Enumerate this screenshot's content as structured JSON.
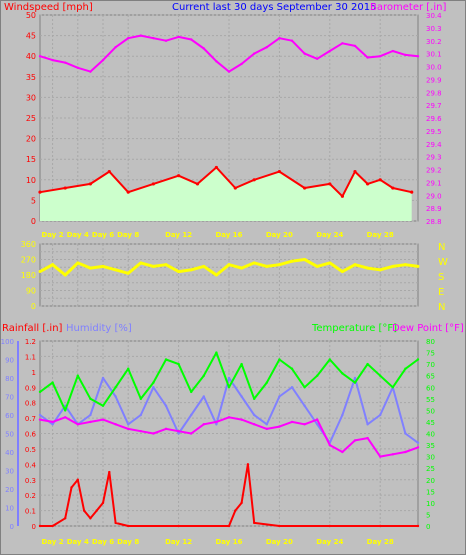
{
  "chart_data": [
    {
      "type": "line",
      "title": "Current last 30 days September 30 2015",
      "ylabel_left": "Windspeed [mph]",
      "ylabel_right": "Barometer [.in]",
      "x_tick_labels": [
        "Day 2",
        "Day 4",
        "Day 6",
        "Day 8",
        "Day 12",
        "Day 16",
        "Day 20",
        "Day 24",
        "Day 28"
      ],
      "x_tick_days": [
        2,
        4,
        6,
        8,
        12,
        16,
        20,
        24,
        28
      ],
      "x_range_days": [
        1,
        31
      ],
      "ylim_left": [
        0,
        50
      ],
      "ylim_right": [
        28.8,
        30.4
      ],
      "y_ticks_left": [
        0,
        5,
        10,
        15,
        20,
        25,
        30,
        35,
        40,
        45,
        50
      ],
      "y_ticks_right": [
        28.8,
        28.9,
        29.0,
        29.1,
        29.2,
        29.3,
        29.4,
        29.5,
        29.6,
        29.7,
        29.8,
        29.9,
        30.0,
        30.1,
        30.2,
        30.3,
        30.4
      ],
      "series": [
        {
          "name": "Windspeed [mph]",
          "color": "#ff0000",
          "x": [
            1,
            3,
            5,
            6.5,
            8,
            10,
            12,
            13.5,
            15,
            16.5,
            18,
            20,
            22,
            24,
            25,
            26,
            27,
            28,
            29,
            30.5
          ],
          "values": [
            7,
            8,
            9,
            12,
            7,
            9,
            11,
            9,
            13,
            8,
            10,
            12,
            8,
            9,
            6,
            12,
            9,
            10,
            8,
            7
          ]
        },
        {
          "name": "Barometer [.in]",
          "color": "#ff00ff",
          "x": [
            1,
            2,
            3,
            4,
            5,
            6,
            7,
            8,
            9,
            10,
            11,
            12,
            13,
            14,
            15,
            16,
            17,
            18,
            19,
            20,
            21,
            22,
            23,
            24,
            25,
            26,
            27,
            28,
            29,
            30,
            31
          ],
          "values": [
            30.08,
            30.05,
            30.03,
            29.99,
            29.96,
            30.05,
            30.15,
            30.22,
            30.24,
            30.22,
            30.2,
            30.23,
            30.21,
            30.14,
            30.04,
            29.96,
            30.02,
            30.1,
            30.15,
            30.22,
            30.2,
            30.1,
            30.06,
            30.12,
            30.18,
            30.16,
            30.07,
            30.08,
            30.12,
            30.09,
            30.08
          ]
        }
      ]
    },
    {
      "type": "line",
      "ylabel_right": [
        "N",
        "W",
        "S",
        "E",
        "N"
      ],
      "ylim": [
        0,
        360
      ],
      "y_ticks": [
        0,
        45,
        90,
        135,
        180,
        225,
        270,
        315,
        360
      ],
      "series": [
        {
          "name": "Wind direction",
          "color": "#ffff00",
          "x": [
            1,
            2,
            3,
            4,
            5,
            6,
            7,
            8,
            9,
            10,
            11,
            12,
            13,
            14,
            15,
            16,
            17,
            18,
            19,
            20,
            21,
            22,
            23,
            24,
            25,
            26,
            27,
            28,
            29,
            30,
            31
          ],
          "values": [
            200,
            240,
            180,
            250,
            220,
            230,
            210,
            190,
            250,
            230,
            240,
            200,
            210,
            230,
            180,
            240,
            220,
            250,
            230,
            240,
            260,
            270,
            230,
            250,
            200,
            240,
            220,
            210,
            230,
            240,
            230
          ]
        }
      ]
    },
    {
      "type": "line",
      "ylabel_left": "Rainfall [.in]",
      "ylabel_left2": "Humidity [%]",
      "ylabel_right": "Temperature [°F]",
      "ylabel_right2": "Dew Point [°F]",
      "ylim_rain": [
        0,
        1.2
      ],
      "ylim_humidity": [
        0,
        100
      ],
      "ylim_temp": [
        0,
        80
      ],
      "y_ticks_rain": [
        0,
        0.1,
        0.2,
        0.3,
        0.4,
        0.5,
        0.6,
        0.7,
        0.8,
        0.9,
        1.0,
        1.1,
        1.2
      ],
      "y_ticks_humidity": [
        0,
        10,
        20,
        30,
        40,
        50,
        60,
        70,
        80,
        90,
        100
      ],
      "y_ticks_temp": [
        0,
        5,
        10,
        15,
        20,
        25,
        30,
        35,
        40,
        45,
        50,
        55,
        60,
        65,
        70,
        75,
        80
      ],
      "series": [
        {
          "name": "Rainfall [.in]",
          "color": "#ff0000",
          "x": [
            1,
            2,
            3,
            3.5,
            4,
            4.5,
            5,
            5.5,
            6,
            6.5,
            7,
            8,
            12,
            16,
            16.5,
            17,
            17.5,
            18,
            20,
            24,
            28,
            31
          ],
          "values": [
            0,
            0,
            0.05,
            0.25,
            0.3,
            0.1,
            0.05,
            0.1,
            0.15,
            0.35,
            0.02,
            0,
            0,
            0,
            0.1,
            0.15,
            0.4,
            0.02,
            0,
            0,
            0,
            0
          ]
        },
        {
          "name": "Humidity [%]",
          "color": "#8080ff",
          "x": [
            1,
            2,
            3,
            4,
            5,
            6,
            7,
            8,
            9,
            10,
            11,
            12,
            13,
            14,
            15,
            16,
            17,
            18,
            19,
            20,
            21,
            22,
            23,
            24,
            25,
            26,
            27,
            28,
            29,
            30,
            31
          ],
          "values": [
            60,
            55,
            65,
            55,
            60,
            80,
            70,
            55,
            60,
            75,
            65,
            50,
            60,
            70,
            55,
            80,
            70,
            60,
            55,
            70,
            75,
            65,
            55,
            45,
            60,
            80,
            55,
            60,
            75,
            50,
            45
          ]
        },
        {
          "name": "Temperature [°F]",
          "color": "#00ff00",
          "x": [
            1,
            2,
            3,
            4,
            5,
            6,
            7,
            8,
            9,
            10,
            11,
            12,
            13,
            14,
            15,
            16,
            17,
            18,
            19,
            20,
            21,
            22,
            23,
            24,
            25,
            26,
            27,
            28,
            29,
            30,
            31
          ],
          "values": [
            58,
            62,
            50,
            65,
            55,
            52,
            60,
            68,
            55,
            62,
            72,
            70,
            58,
            65,
            75,
            60,
            70,
            55,
            62,
            72,
            68,
            60,
            65,
            72,
            66,
            62,
            70,
            65,
            60,
            68,
            72
          ]
        },
        {
          "name": "Dew Point [°F]",
          "color": "#ff00ff",
          "x": [
            1,
            2,
            3,
            4,
            5,
            6,
            7,
            8,
            9,
            10,
            11,
            12,
            13,
            14,
            15,
            16,
            17,
            18,
            19,
            20,
            21,
            22,
            23,
            24,
            25,
            26,
            27,
            28,
            29,
            30,
            31
          ],
          "values": [
            46,
            45,
            47,
            44,
            45,
            46,
            44,
            42,
            41,
            40,
            42,
            41,
            40,
            44,
            45,
            47,
            46,
            44,
            42,
            43,
            45,
            44,
            46,
            35,
            32,
            37,
            38,
            30,
            31,
            32,
            34
          ]
        }
      ]
    }
  ]
}
